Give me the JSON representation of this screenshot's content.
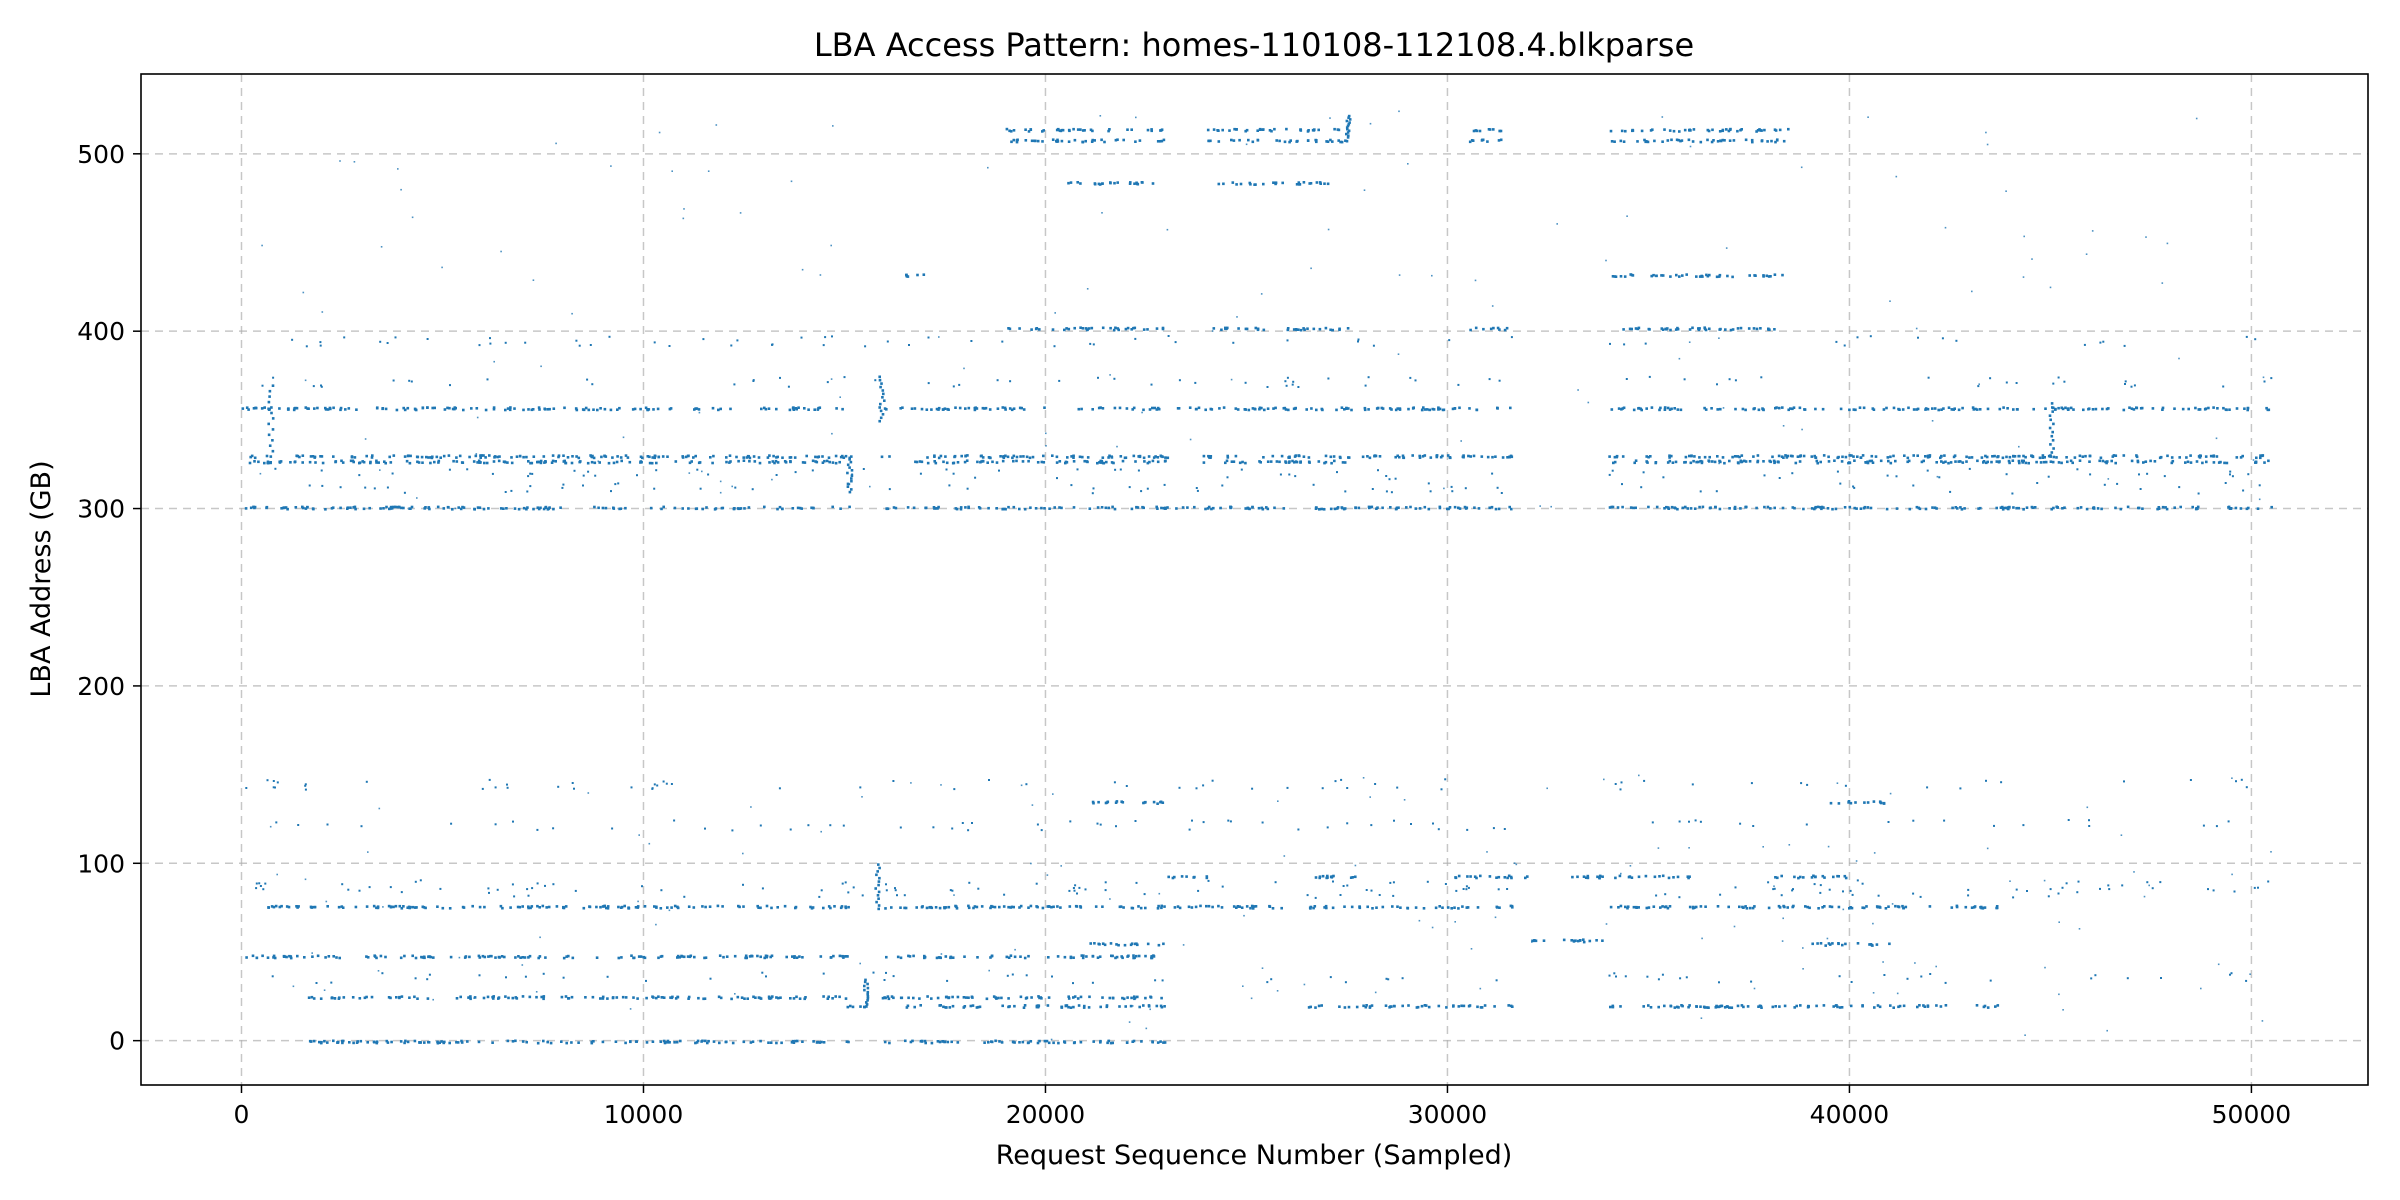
{
  "chart_data": {
    "type": "scatter",
    "title": "LBA Access Pattern: homes-110108-112108.4.blkparse",
    "xlabel": "Request Sequence Number (Sampled)",
    "ylabel": "LBA Address (GB)",
    "xlim": [
      -2500,
      52900
    ],
    "ylim": [
      -25,
      545
    ],
    "xticks": [
      0,
      10000,
      20000,
      30000,
      40000,
      50000
    ],
    "yticks": [
      0,
      100,
      200,
      300,
      400,
      500
    ],
    "grid": true,
    "marker_color": "#1f77b4",
    "bands": [
      {
        "y": 330,
        "segments": [
          [
            0,
            15100
          ],
          [
            15900,
            23200
          ],
          [
            23800,
            31600
          ],
          [
            34000,
            50500
          ]
        ]
      },
      {
        "y": 327,
        "segments": [
          [
            0,
            15100
          ],
          [
            16500,
            23000
          ],
          [
            23800,
            27500
          ],
          [
            34000,
            50500
          ]
        ]
      },
      {
        "y": 301,
        "segments": [
          [
            0,
            15100
          ],
          [
            15900,
            31600
          ],
          [
            34000,
            50500
          ]
        ]
      },
      {
        "y": 357,
        "segments": [
          [
            0,
            15100
          ],
          [
            15900,
            31600
          ],
          [
            34000,
            50500
          ]
        ]
      },
      {
        "y": 402,
        "segments": [
          [
            19000,
            22900
          ],
          [
            24000,
            27500
          ],
          [
            30500,
            31500
          ],
          [
            34000,
            38500
          ]
        ]
      },
      {
        "y": 514,
        "segments": [
          [
            19000,
            23000
          ],
          [
            24000,
            27500
          ],
          [
            30500,
            31500
          ],
          [
            34000,
            38500
          ]
        ]
      },
      {
        "y": 508,
        "segments": [
          [
            19000,
            23000
          ],
          [
            24000,
            27500
          ],
          [
            30500,
            31500
          ],
          [
            34000,
            38500
          ]
        ]
      },
      {
        "y": 484,
        "segments": [
          [
            20500,
            23000
          ],
          [
            24000,
            27000
          ]
        ]
      },
      {
        "y": 432,
        "segments": [
          [
            16500,
            17000
          ],
          [
            34000,
            38500
          ]
        ]
      },
      {
        "y": 135,
        "segments": [
          [
            21000,
            23000
          ],
          [
            39500,
            41000
          ]
        ]
      },
      {
        "y": 93,
        "segments": [
          [
            23000,
            24000
          ],
          [
            26500,
            28000
          ],
          [
            30000,
            32000
          ],
          [
            33000,
            36000
          ],
          [
            38000,
            40000
          ]
        ]
      },
      {
        "y": 76,
        "segments": [
          [
            0,
            15100
          ],
          [
            15900,
            31600
          ],
          [
            34000,
            43800
          ]
        ]
      },
      {
        "y": 57,
        "segments": [
          [
            32000,
            34000
          ]
        ]
      },
      {
        "y": 55,
        "segments": [
          [
            21000,
            23000
          ],
          [
            39000,
            41000
          ]
        ]
      },
      {
        "y": 48,
        "segments": [
          [
            0,
            15100
          ],
          [
            15900,
            23000
          ]
        ]
      },
      {
        "y": 25,
        "segments": [
          [
            1500,
            15100
          ],
          [
            15900,
            23000
          ]
        ]
      },
      {
        "y": 20,
        "segments": [
          [
            15000,
            15500
          ],
          [
            16500,
            23000
          ],
          [
            26500,
            31600
          ],
          [
            34000,
            43800
          ]
        ]
      },
      {
        "y": 0,
        "segments": [
          [
            1500,
            15100
          ],
          [
            15900,
            23000
          ]
        ]
      }
    ],
    "sparse_levels": [
      372,
      395,
      88,
      84,
      122,
      145,
      320,
      312,
      36
    ],
    "spikes": [
      {
        "x": 15900,
        "y0": 350,
        "y1": 375
      },
      {
        "x": 15800,
        "y0": 75,
        "y1": 100
      },
      {
        "x": 15500,
        "y0": 20,
        "y1": 35
      },
      {
        "x": 15100,
        "y0": 310,
        "y1": 330
      },
      {
        "x": 27500,
        "y0": 510,
        "y1": 522
      },
      {
        "x": 700,
        "y0": 330,
        "y1": 370
      },
      {
        "x": 45000,
        "y0": 330,
        "y1": 360
      }
    ]
  }
}
